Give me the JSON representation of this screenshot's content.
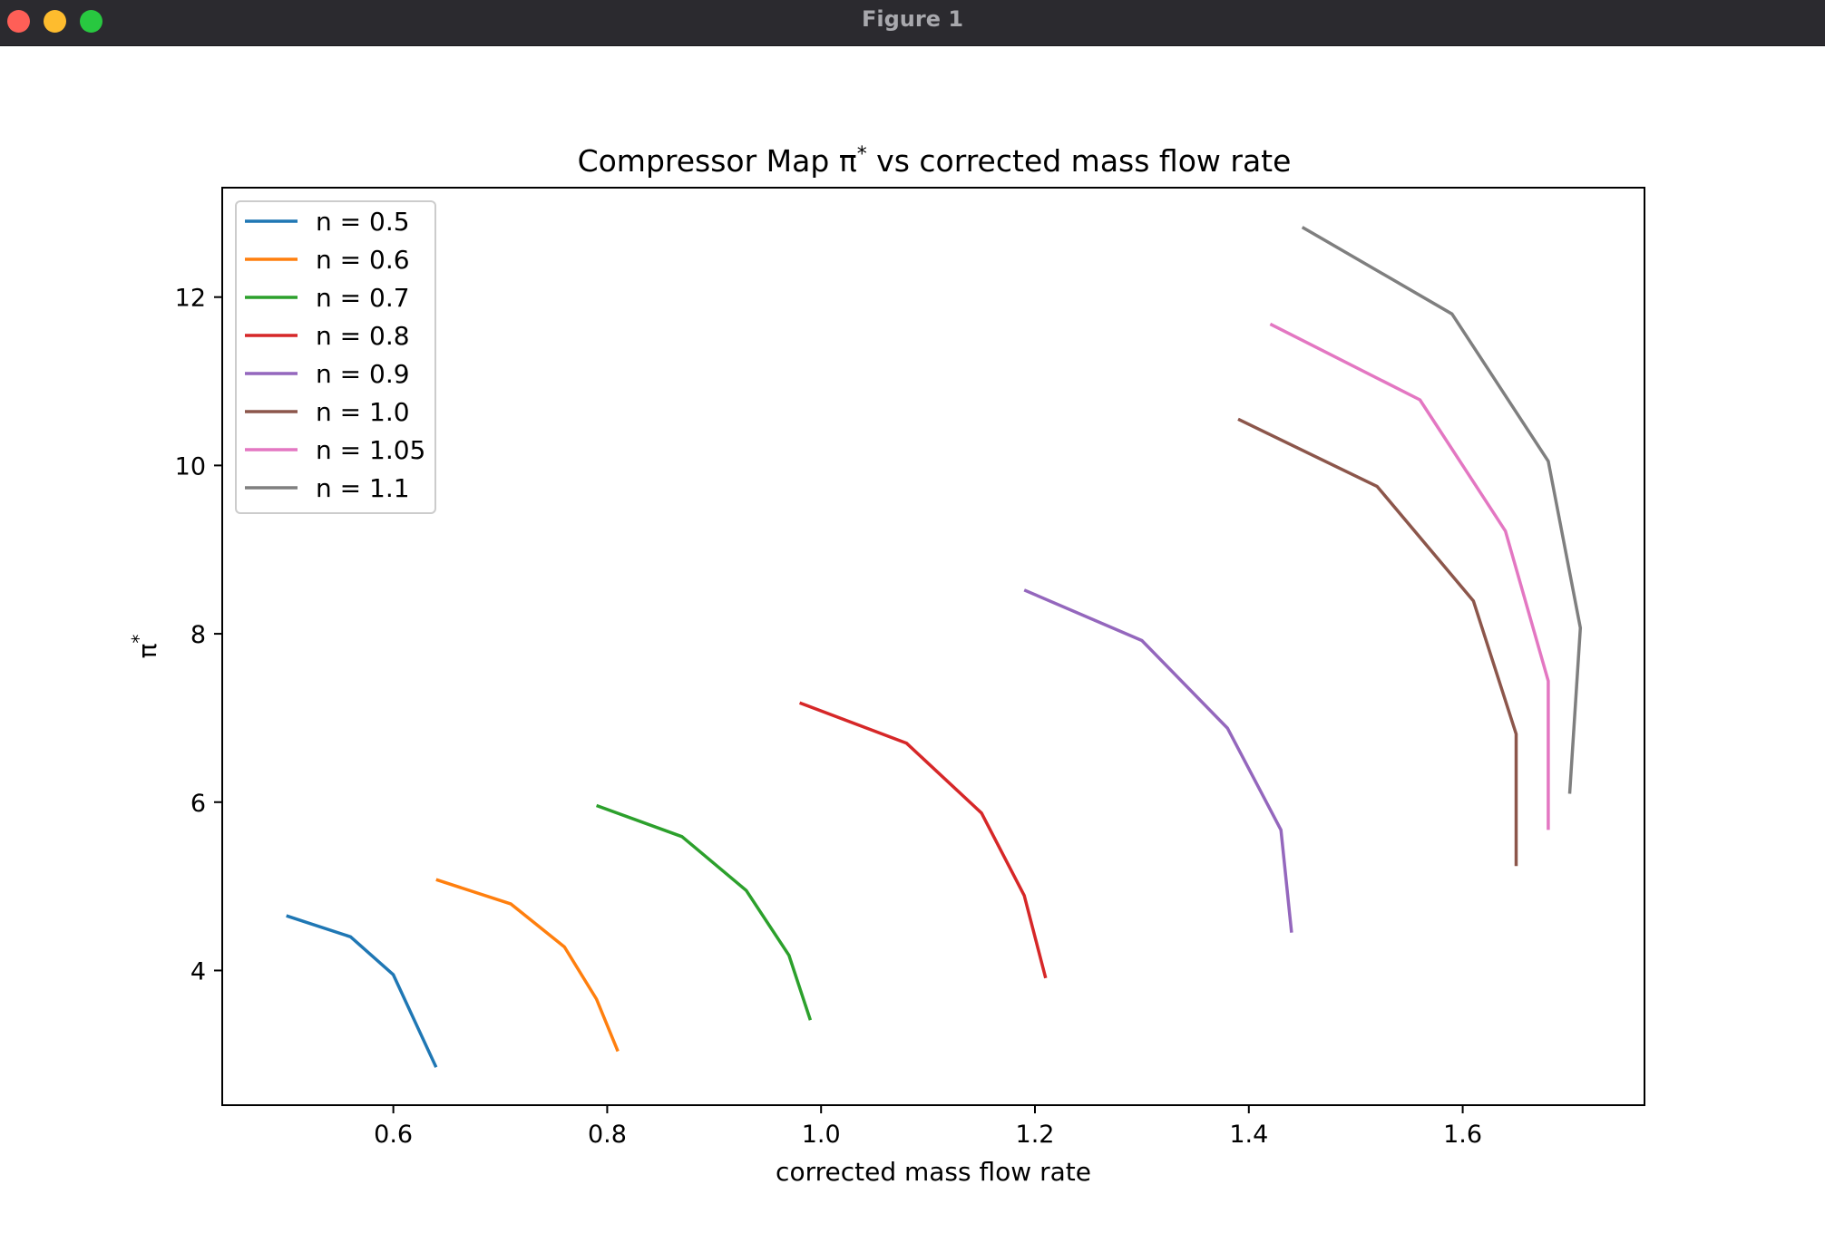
{
  "window": {
    "title": "Figure 1"
  },
  "chart_data": {
    "type": "line",
    "title": "Compressor Map π* vs corrected mass flow rate",
    "xlabel": "corrected mass flow rate",
    "ylabel": "π*",
    "xlim": [
      0.44,
      1.77
    ],
    "ylim": [
      2.4,
      13.3
    ],
    "xticks": [
      "0.6",
      "0.8",
      "1.0",
      "1.2",
      "1.4",
      "1.6"
    ],
    "yticks": [
      "4",
      "6",
      "8",
      "10",
      "12"
    ],
    "grid": false,
    "legend_position": "upper left",
    "series": [
      {
        "name": "n = 0.5",
        "color": "#1f77b4",
        "x": [
          0.5,
          0.56,
          0.6,
          0.62,
          0.64
        ],
        "y": [
          4.65,
          4.4,
          3.95,
          3.4,
          2.85
        ]
      },
      {
        "name": "n = 0.6",
        "color": "#ff7f0e",
        "x": [
          0.64,
          0.71,
          0.76,
          0.79,
          0.81
        ],
        "y": [
          5.08,
          4.79,
          4.28,
          3.66,
          3.04
        ]
      },
      {
        "name": "n = 0.7",
        "color": "#2ca02c",
        "x": [
          0.79,
          0.87,
          0.93,
          0.97,
          0.99
        ],
        "y": [
          5.96,
          5.59,
          4.95,
          4.18,
          3.41
        ]
      },
      {
        "name": "n = 0.8",
        "color": "#d62728",
        "x": [
          0.98,
          1.08,
          1.15,
          1.19,
          1.21
        ],
        "y": [
          7.18,
          6.7,
          5.87,
          4.89,
          3.91
        ]
      },
      {
        "name": "n = 0.9",
        "color": "#9467bd",
        "x": [
          1.19,
          1.3,
          1.38,
          1.43,
          1.44
        ],
        "y": [
          8.52,
          7.92,
          6.88,
          5.67,
          4.45
        ]
      },
      {
        "name": "n = 1.0",
        "color": "#8c564b",
        "x": [
          1.39,
          1.52,
          1.61,
          1.65,
          1.65
        ],
        "y": [
          10.55,
          9.75,
          8.39,
          6.81,
          5.24
        ]
      },
      {
        "name": "n = 1.05",
        "color": "#e377c2",
        "x": [
          1.42,
          1.56,
          1.64,
          1.68,
          1.68
        ],
        "y": [
          11.68,
          10.78,
          9.22,
          7.44,
          5.67
        ]
      },
      {
        "name": "n = 1.1",
        "color": "#7f7f7f",
        "x": [
          1.45,
          1.59,
          1.68,
          1.71,
          1.7
        ],
        "y": [
          12.83,
          11.8,
          10.05,
          8.07,
          6.1
        ]
      }
    ]
  }
}
